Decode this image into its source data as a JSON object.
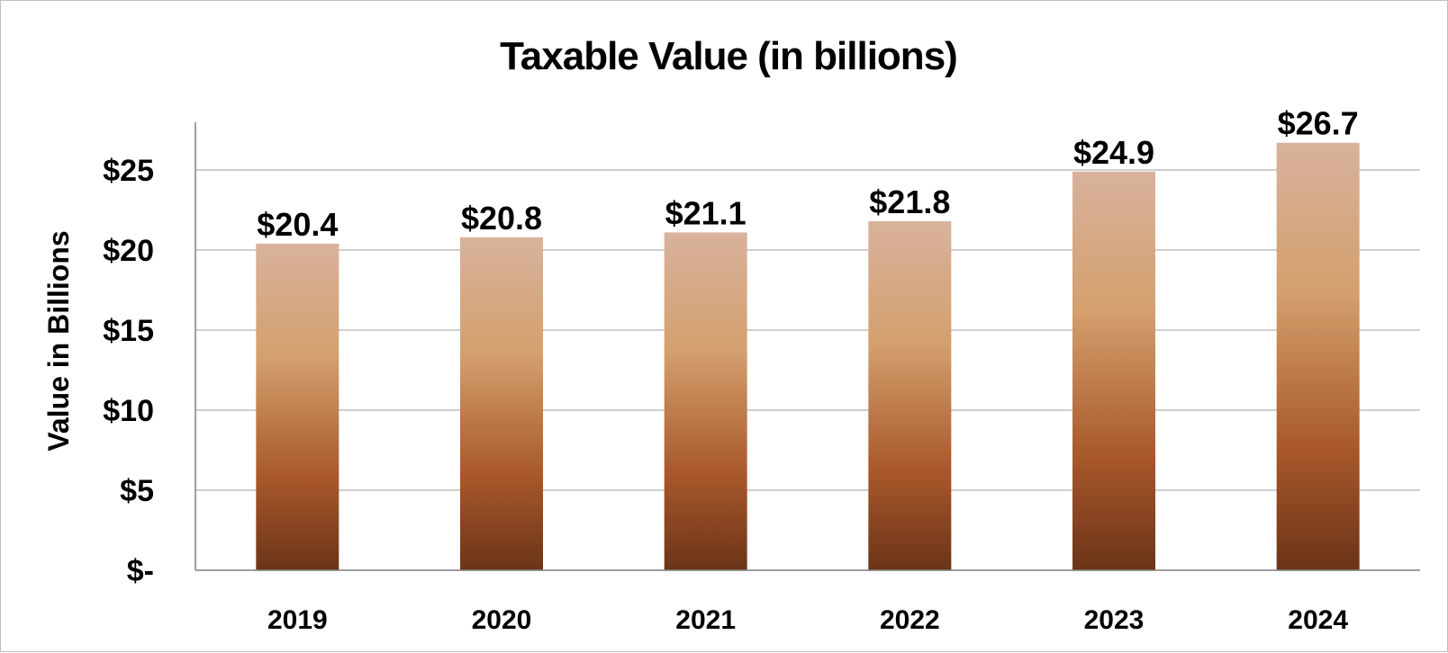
{
  "chart_data": {
    "type": "bar",
    "title": "Taxable Value (in billions)",
    "ylabel": "Value in Billions",
    "xlabel": "",
    "categories": [
      "2019",
      "2020",
      "2021",
      "2022",
      "2023",
      "2024"
    ],
    "values": [
      20.4,
      20.8,
      21.1,
      21.8,
      24.9,
      26.7
    ],
    "data_labels": [
      "$20.4",
      "$20.8",
      "$21.1",
      "$21.8",
      "$24.9",
      "$26.7"
    ],
    "ylim": [
      0,
      28
    ],
    "yticks": [
      0,
      5,
      10,
      15,
      20,
      25
    ],
    "ytick_labels": [
      "$-",
      "$5",
      "$10",
      "$15",
      "$20",
      "$25"
    ],
    "grid": true,
    "legend": "none",
    "bar_gradient": [
      "#d8b29c",
      "#d4a06d",
      "#a8572a",
      "#6b3418"
    ]
  }
}
